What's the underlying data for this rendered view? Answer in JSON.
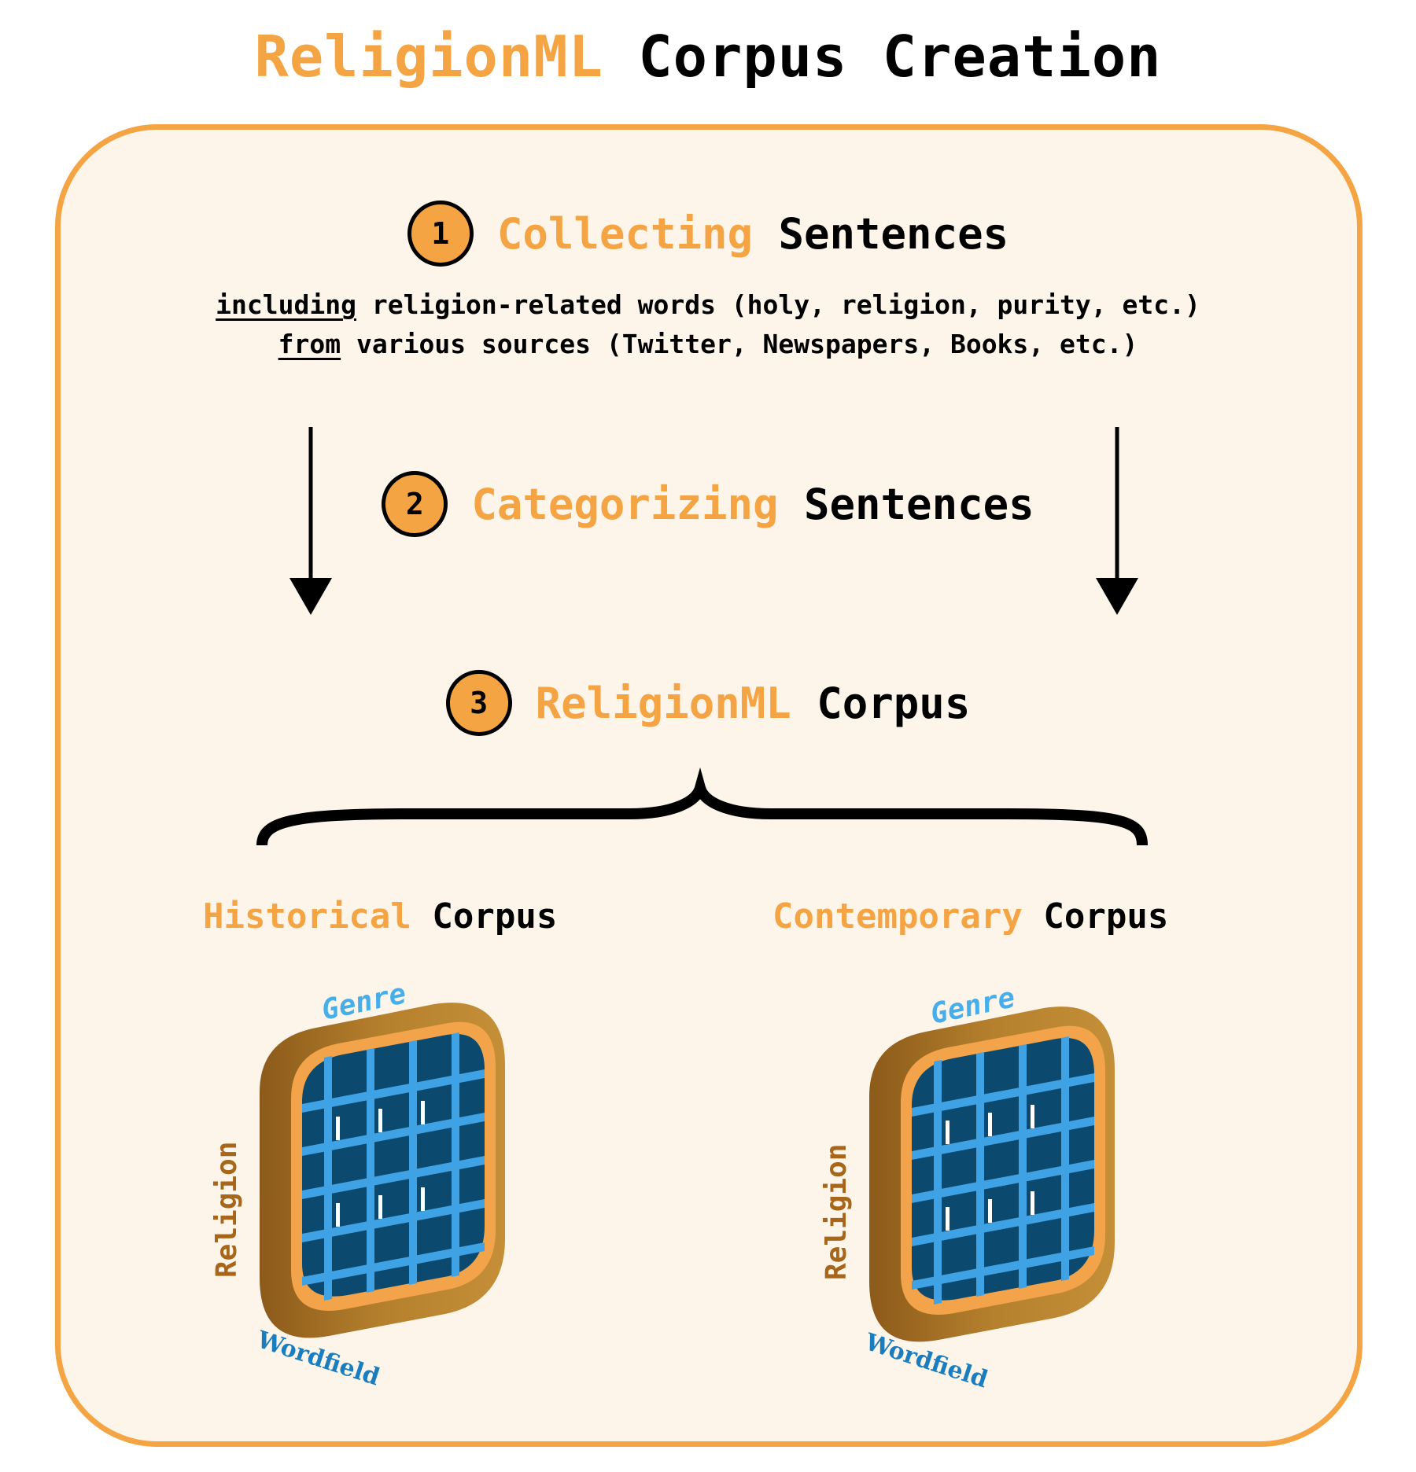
{
  "title": {
    "highlight": "ReligionML",
    "rest": "Corpus Creation"
  },
  "steps": [
    {
      "number": "1",
      "highlight": "Collecting",
      "rest": "Sentences"
    },
    {
      "number": "2",
      "highlight": "Categorizing",
      "rest": "Sentences"
    },
    {
      "number": "3",
      "highlight": "ReligionML",
      "rest": "Corpus"
    }
  ],
  "step1_desc": {
    "line1_underlined": "including",
    "line1_rest": "religion-related words (holy, religion, purity, etc.)",
    "line2_underlined": "from",
    "line2_rest": "various sources (Twitter, Newspapers, Books, etc.)"
  },
  "corpora": [
    {
      "highlight": "Historical",
      "rest": "Corpus",
      "axis_top": "Genre",
      "axis_side": "Religion",
      "axis_bottom": "Wordfield"
    },
    {
      "highlight": "Contemporary",
      "rest": "Corpus",
      "axis_top": "Genre",
      "axis_side": "Religion",
      "axis_bottom": "Wordfield"
    }
  ],
  "colors": {
    "accent": "#F5A443",
    "panel_bg": "#FDF5EA",
    "frame": "#B07A2A",
    "grid_blue": "#3EA2E5",
    "grid_dark": "#0B4A6E",
    "genre_text": "#46AEEB",
    "wordfield_text": "#1A7DBF",
    "religion_text": "#A8661B"
  }
}
